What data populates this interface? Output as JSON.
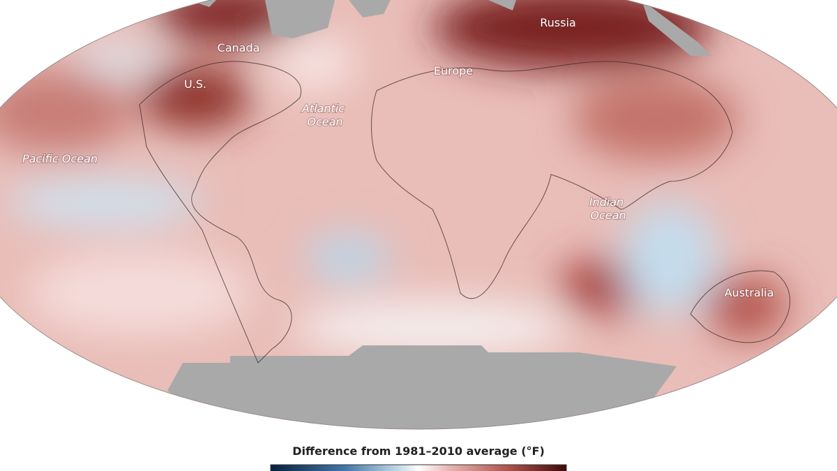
{
  "map": {
    "labels": {
      "canada": "Canada",
      "russia": "Russia",
      "us": "U.S.",
      "europe": "Europe",
      "atlantic": [
        "Atlantic",
        "Ocean"
      ],
      "pacific": "Pacific Ocean",
      "indian": [
        "Indian",
        "Ocean"
      ],
      "australia": "Australia"
    },
    "legend": {
      "title": "Difference from 1981–2010 average (°F)"
    }
  }
}
